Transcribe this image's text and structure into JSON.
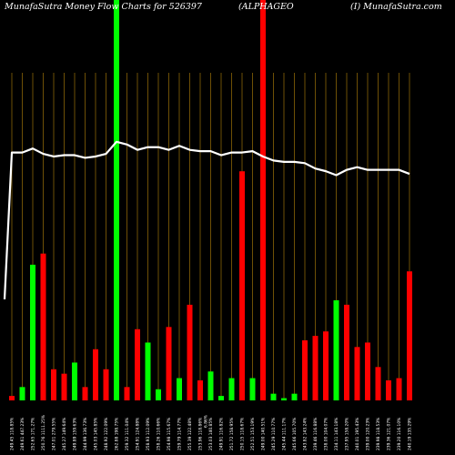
{
  "header": {
    "left": "MunafaSutra  Money Flow  Charts for 526397",
    "center": "(ALPHAGEO",
    "right": "(I) MunafaSutra.com"
  },
  "chart_data": {
    "type": "bar",
    "title": "MunafaSutra  Money Flow  Charts for 526397",
    "colors": {
      "background": "#000000",
      "positive": "#00ff00",
      "negative": "#ff0000",
      "grid": "#b8860b",
      "price_line": "#ffffff"
    },
    "grid": true,
    "bars": [
      {
        "label": "249.45 118.85%",
        "color": "red",
        "value": 2
      },
      {
        "label": "249.61 447.23%",
        "color": "green",
        "value": 6
      },
      {
        "label": "252.65 171.27%",
        "color": "green",
        "value": 61
      },
      {
        "label": "250.76 1111.25%",
        "color": "red",
        "value": 66
      },
      {
        "label": "247.01 279.55%",
        "color": "red",
        "value": 14
      },
      {
        "label": "245.27 149.64%",
        "color": "red",
        "value": 12
      },
      {
        "label": "249.89 159.63%",
        "color": "green",
        "value": 17
      },
      {
        "label": "244.99 136.73%",
        "color": "red",
        "value": 6
      },
      {
        "label": "245.03 145.85%",
        "color": "red",
        "value": 23
      },
      {
        "label": "248.92 122.09%",
        "color": "red",
        "value": 14
      },
      {
        "label": "262.88 198.75%",
        "color": "green",
        "value": 180
      },
      {
        "label": "259.32 111.04%",
        "color": "red",
        "value": 6
      },
      {
        "label": "254.91 124.88%",
        "color": "red",
        "value": 32
      },
      {
        "label": "258.93 112.09%",
        "color": "green",
        "value": 26
      },
      {
        "label": "258.26 110.66%",
        "color": "green",
        "value": 5
      },
      {
        "label": "254.98 115.67%",
        "color": "red",
        "value": 33
      },
      {
        "label": "259.79 114.77%",
        "color": "green",
        "value": 10
      },
      {
        "label": "255.39 122.48%",
        "color": "red",
        "value": 43
      },
      {
        "label": "253.96 118.86%",
        "color": "red",
        "value": 9
      },
      {
        "label": "253.03 140.85%",
        "color": "green",
        "value": 13
      },
      {
        "label": "249.91 116.82%",
        "color": "green",
        "value": 2
      },
      {
        "label": "251.72 158.95%",
        "color": "green",
        "value": 10
      },
      {
        "label": "250.15 118.67%",
        "color": "red",
        "value": 103
      },
      {
        "label": "252.51 153.19%",
        "color": "green",
        "value": 10
      },
      {
        "label": "249.00 140.51%",
        "color": "red",
        "value": 180
      },
      {
        "label": "245.29 110.77%",
        "color": "green",
        "value": 3
      },
      {
        "label": "245.44 111.17%",
        "color": "green",
        "value": 1
      },
      {
        "label": "245.66 105.70%",
        "color": "green",
        "value": 3
      },
      {
        "label": "243.82 143.24%",
        "color": "red",
        "value": 27
      },
      {
        "label": "239.46 116.88%",
        "color": "red",
        "value": 29
      },
      {
        "label": "238.00 104.07%",
        "color": "red",
        "value": 31
      },
      {
        "label": "234.11 143.18%",
        "color": "green",
        "value": 45
      },
      {
        "label": "237.95 158.20%",
        "color": "red",
        "value": 43
      },
      {
        "label": "240.01 195.43%",
        "color": "red",
        "value": 24
      },
      {
        "label": "239.00 120.23%",
        "color": "red",
        "value": 26
      },
      {
        "label": "239.98 118.53%",
        "color": "red",
        "value": 15
      },
      {
        "label": "239.36 121.07%",
        "color": "red",
        "value": 9
      },
      {
        "label": "239.20 116.10%",
        "color": "red",
        "value": 10
      },
      {
        "label": "240.19 135.29%",
        "color": "red",
        "value": 58
      }
    ],
    "price_line": [
      230,
      230,
      233,
      229,
      227,
      228,
      228,
      226,
      227,
      229,
      238,
      236,
      232,
      234,
      234,
      232,
      235,
      232,
      231,
      231,
      228,
      230,
      230,
      231,
      227,
      224,
      223,
      223,
      222,
      218,
      216,
      213,
      217,
      219,
      217,
      217,
      217,
      217,
      214
    ],
    "price_start": 120,
    "extra_label": "6.86%"
  }
}
